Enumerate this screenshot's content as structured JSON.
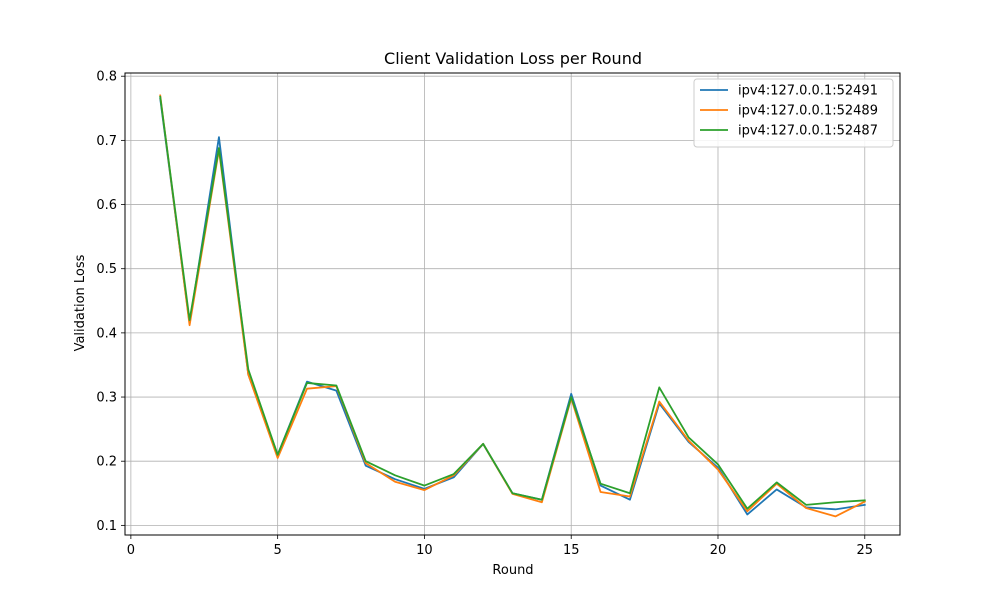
{
  "chart_data": {
    "type": "line",
    "title": "Client Validation Loss per Round",
    "xlabel": "Round",
    "ylabel": "Validation Loss",
    "xlim": [
      -0.2,
      26.2
    ],
    "ylim": [
      0.085,
      0.805
    ],
    "xticks": [
      0,
      5,
      10,
      15,
      20,
      25
    ],
    "yticks": [
      0.1,
      0.2,
      0.3,
      0.4,
      0.5,
      0.6,
      0.7,
      0.8
    ],
    "grid": true,
    "legend_position": "top-right",
    "x": [
      1,
      2,
      3,
      4,
      5,
      6,
      7,
      8,
      9,
      10,
      11,
      12,
      13,
      14,
      15,
      16,
      17,
      18,
      19,
      20,
      21,
      22,
      23,
      24,
      25
    ],
    "series": [
      {
        "name": "ipv4:127.0.0.1:52491",
        "color": "#1f77b4",
        "values": [
          0.765,
          0.415,
          0.705,
          0.335,
          0.21,
          0.324,
          0.31,
          0.193,
          0.172,
          0.157,
          0.175,
          0.227,
          0.15,
          0.14,
          0.305,
          0.162,
          0.14,
          0.29,
          0.23,
          0.19,
          0.117,
          0.156,
          0.128,
          0.125,
          0.132
        ]
      },
      {
        "name": "ipv4:127.0.0.1:52489",
        "color": "#ff7f0e",
        "values": [
          0.77,
          0.412,
          0.685,
          0.335,
          0.205,
          0.313,
          0.317,
          0.197,
          0.168,
          0.155,
          0.178,
          0.227,
          0.149,
          0.136,
          0.298,
          0.152,
          0.145,
          0.293,
          0.232,
          0.187,
          0.122,
          0.165,
          0.127,
          0.114,
          0.137
        ]
      },
      {
        "name": "ipv4:127.0.0.1:52487",
        "color": "#2ca02c",
        "values": [
          0.768,
          0.42,
          0.688,
          0.343,
          0.21,
          0.322,
          0.318,
          0.2,
          0.178,
          0.162,
          0.18,
          0.227,
          0.15,
          0.14,
          0.3,
          0.165,
          0.15,
          0.315,
          0.237,
          0.195,
          0.126,
          0.167,
          0.132,
          0.136,
          0.139
        ]
      }
    ]
  }
}
